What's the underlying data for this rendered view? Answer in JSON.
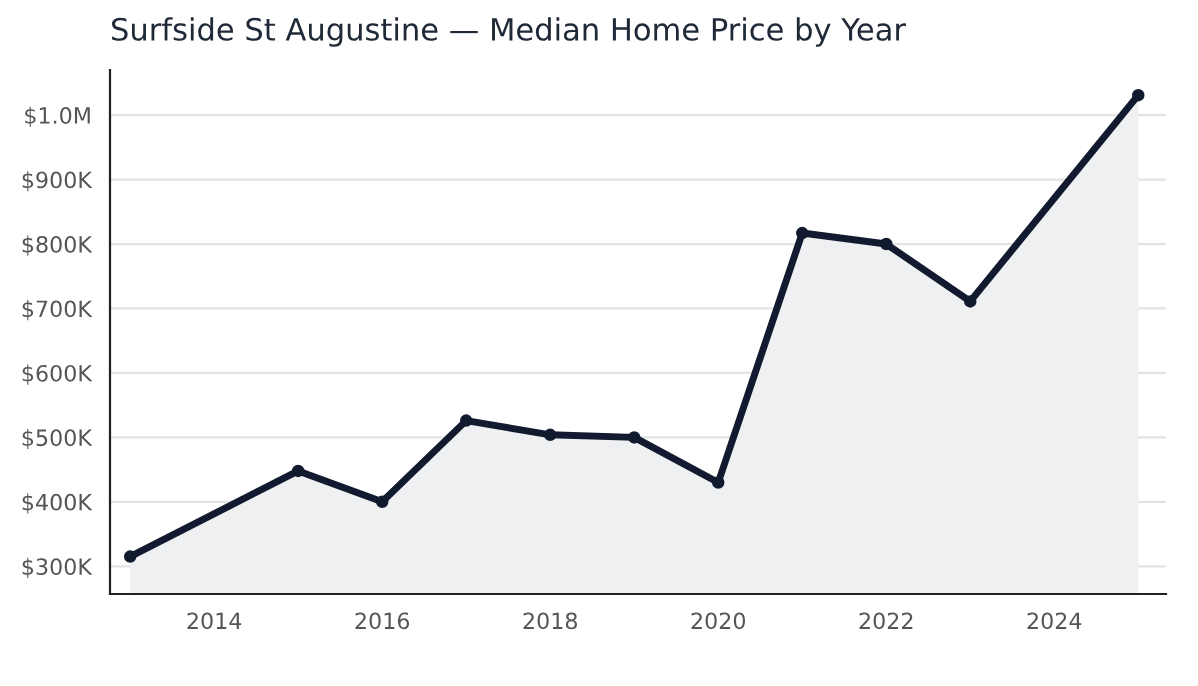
{
  "chart_data": {
    "type": "area",
    "title": "Surfside St Augustine — Median Home Price by Year",
    "x": [
      2013,
      2015,
      2016,
      2017,
      2018,
      2019,
      2020,
      2021,
      2022,
      2023,
      2025
    ],
    "series": [
      {
        "color": "#111a2e",
        "values": [
          315000,
          448000,
          400000,
          526000,
          504000,
          500000,
          430000,
          817000,
          800000,
          711000,
          1031000
        ]
      }
    ],
    "xlim": [
      2012.76,
      2025.33
    ],
    "xticks": [
      2014,
      2016,
      2018,
      2020,
      2022,
      2024
    ],
    "ylim": [
      257000,
      1070000
    ],
    "yticks": [
      {
        "value": 300000,
        "label": "$300K"
      },
      {
        "value": 400000,
        "label": "$400K"
      },
      {
        "value": 500000,
        "label": "$500K"
      },
      {
        "value": 600000,
        "label": "$600K"
      },
      {
        "value": 700000,
        "label": "$700K"
      },
      {
        "value": 800000,
        "label": "$800K"
      },
      {
        "value": 900000,
        "label": "$900K"
      },
      {
        "value": 1000000,
        "label": "$1.0M"
      }
    ],
    "grid": "y",
    "marker": "circle",
    "line_style": "solid"
  }
}
